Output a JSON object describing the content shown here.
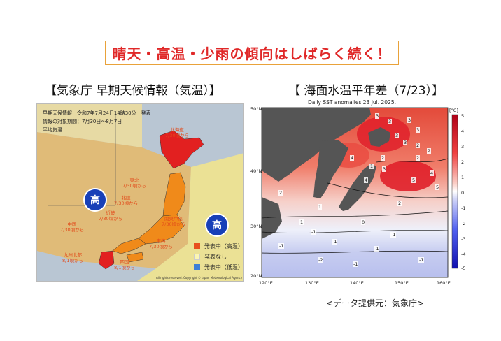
{
  "banner": "晴天・高温・少雨の傾向はしばらく続く！",
  "left_heading": "【気象庁 早期天候情報（気温）】",
  "right_heading": "【 海面水温平年差（7/23）】",
  "left_map": {
    "header_lines": [
      "早期天候情報　令和7年7月24日14時30分　発表",
      "情報の対象期間：7月30日～8月7日",
      "平均気温"
    ],
    "regions": [
      {
        "name": "北海道",
        "date": "7/30頃から"
      },
      {
        "name": "東北",
        "date": "7/30頃から"
      },
      {
        "name": "北陸",
        "date": "7/30頃から"
      },
      {
        "name": "近畿",
        "date": "7/30頃から"
      },
      {
        "name": "関東甲信",
        "date": "7/30頃から"
      },
      {
        "name": "中国",
        "date": "7/30頃から"
      },
      {
        "name": "東海",
        "date": "7/30頃から"
      },
      {
        "name": "九州北部",
        "date": "8/1頃から"
      },
      {
        "name": "四国",
        "date": "8/1頃から"
      }
    ],
    "high_label": "高",
    "legend": [
      {
        "label": "発表中（高温）",
        "color": "#e8501e"
      },
      {
        "label": "発表なし",
        "color": "#fbf6b2"
      },
      {
        "label": "発表中（低温）",
        "color": "#3d7fd6"
      }
    ],
    "copyright": "All rights reserved. Copyright © Japan Meteorological Agency"
  },
  "right_map": {
    "title": "Daily SST anomalies 23 Jul. 2025.",
    "lat_ticks": [
      "50°N",
      "40°N",
      "30°N",
      "20°N"
    ],
    "lon_ticks": [
      "120°E",
      "130°E",
      "140°E",
      "150°E",
      "160°E"
    ],
    "colorbar_unit": "[°C]",
    "colorbar_ticks": [
      "5",
      "4",
      "3",
      "2",
      "1",
      "0",
      "-1",
      "-2",
      "-3",
      "-4",
      "-5"
    ],
    "contour_labels": [
      "3",
      "3",
      "3",
      "3",
      "3",
      "3",
      "2",
      "2",
      "4",
      "2",
      "1",
      "3",
      "2",
      "4",
      "5",
      "5",
      "4",
      "2",
      "1",
      "2",
      "1",
      "0",
      "-1",
      "-1",
      "-1",
      "-1",
      "-1",
      "-2",
      "-1",
      "-1"
    ]
  },
  "credit": "<データ提供元：気象庁>"
}
